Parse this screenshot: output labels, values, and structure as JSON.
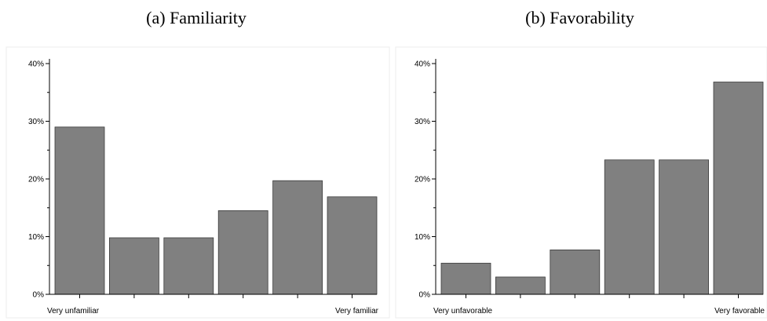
{
  "chart_data": [
    {
      "type": "bar",
      "title": "(a) Familiarity",
      "categories": [
        "Very unfamiliar",
        "",
        "",
        "",
        "",
        "Very familiar"
      ],
      "values": [
        29,
        9.8,
        9.8,
        14.5,
        19.7,
        16.9
      ],
      "yticks": [
        "0%",
        "10%",
        "20%",
        "30%",
        "40%"
      ],
      "ylim": [
        0,
        40
      ],
      "grid": false
    },
    {
      "type": "bar",
      "title": "(b) Favorability",
      "categories": [
        "Very unfavorable",
        "",
        "",
        "",
        "",
        "Very favorable"
      ],
      "values": [
        5.4,
        3.0,
        7.7,
        23.3,
        23.3,
        36.8
      ],
      "yticks": [
        "0%",
        "10%",
        "20%",
        "30%",
        "40%"
      ],
      "ylim": [
        0,
        40
      ],
      "grid": false
    }
  ]
}
